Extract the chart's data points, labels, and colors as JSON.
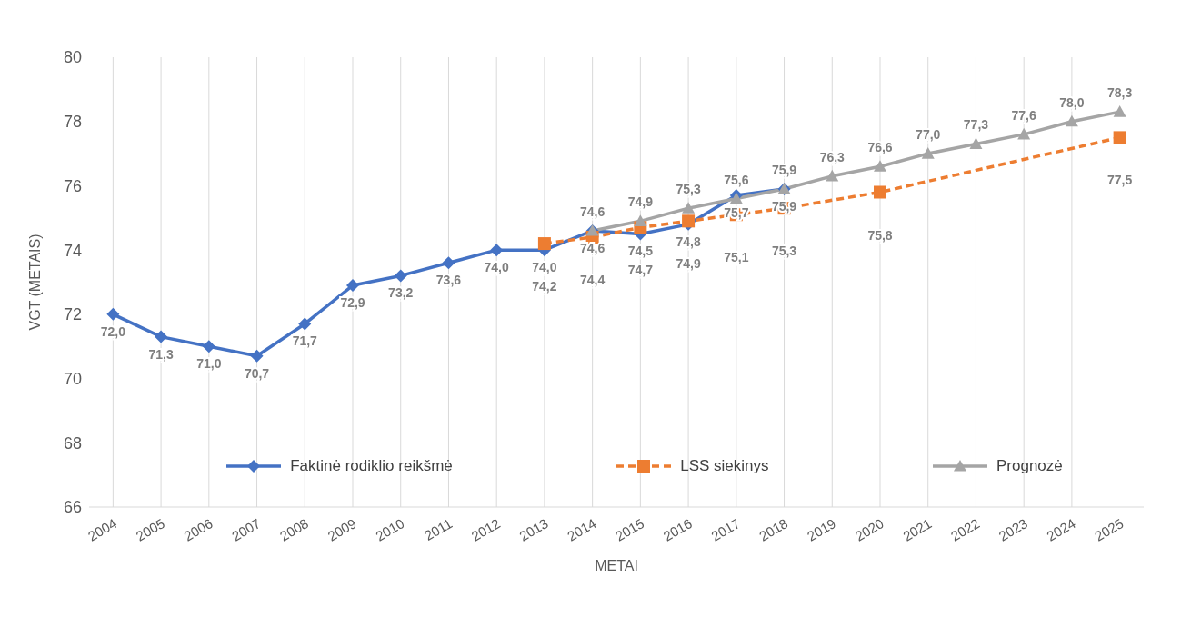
{
  "chart_data": {
    "type": "line",
    "xlabel": "METAI",
    "ylabel": "VGT (METAIS)",
    "categories": [
      "2004",
      "2005",
      "2006",
      "2007",
      "2008",
      "2009",
      "2010",
      "2011",
      "2012",
      "2013",
      "2014",
      "2015",
      "2016",
      "2017",
      "2018",
      "2019",
      "2020",
      "2021",
      "2022",
      "2023",
      "2024",
      "2025"
    ],
    "series": [
      {
        "name": "Faktinė rodiklio reikšmė",
        "color": "#4472c4",
        "marker": "diamond",
        "line_style": "solid",
        "values": [
          72.0,
          71.3,
          71.0,
          70.7,
          71.7,
          72.9,
          73.2,
          73.6,
          74.0,
          74.0,
          74.6,
          74.5,
          74.8,
          75.7,
          75.9,
          null,
          null,
          null,
          null,
          null,
          null,
          null
        ],
        "value_labels": [
          "72,0",
          "71,3",
          "71,0",
          "70,7",
          "71,7",
          "72,9",
          "73,2",
          "73,6",
          "74,0",
          "74,0",
          "74,6",
          "74,5",
          "74,8",
          "75,7",
          "75,9",
          null,
          null,
          null,
          null,
          null,
          null,
          null
        ]
      },
      {
        "name": "LSS siekinys",
        "color": "#ed7d31",
        "marker": "square",
        "line_style": "dashed",
        "values": [
          null,
          null,
          null,
          null,
          null,
          null,
          null,
          null,
          null,
          74.2,
          74.4,
          74.7,
          74.9,
          75.1,
          75.3,
          null,
          75.8,
          null,
          null,
          null,
          null,
          77.5
        ],
        "value_labels": [
          null,
          null,
          null,
          null,
          null,
          null,
          null,
          null,
          null,
          "74,2",
          "74,4",
          "74,7",
          "74,9",
          "75,1",
          "75,3",
          null,
          "75,8",
          null,
          null,
          null,
          null,
          "77,5"
        ]
      },
      {
        "name": "Prognozė",
        "color": "#a5a5a5",
        "marker": "triangle",
        "line_style": "solid",
        "values": [
          null,
          null,
          null,
          null,
          null,
          null,
          null,
          null,
          null,
          null,
          74.6,
          74.9,
          75.3,
          75.6,
          75.9,
          76.3,
          76.6,
          77.0,
          77.3,
          77.6,
          78.0,
          78.3
        ],
        "value_labels": [
          null,
          null,
          null,
          null,
          null,
          null,
          null,
          null,
          null,
          null,
          "74,6",
          "74,9",
          "75,3",
          "75,6",
          "75,9",
          "76,3",
          "76,6",
          "77,0",
          "77,3",
          "77,6",
          "78,0",
          "78,3"
        ]
      }
    ],
    "ylim": [
      66,
      80
    ],
    "yticks": [
      66,
      68,
      70,
      72,
      74,
      76,
      78,
      80
    ],
    "grid": "x",
    "legend": "bottom"
  }
}
